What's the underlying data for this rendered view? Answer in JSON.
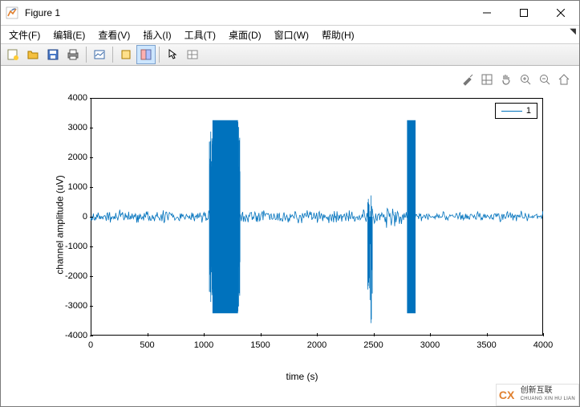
{
  "window": {
    "title": "Figure 1"
  },
  "menu": {
    "items": [
      "文件(F)",
      "编辑(E)",
      "查看(V)",
      "插入(I)",
      "工具(T)",
      "桌面(D)",
      "窗口(W)",
      "帮助(H)"
    ]
  },
  "toolbar": {
    "icons": [
      "new",
      "open",
      "save",
      "print",
      "|",
      "link",
      "|",
      "rotate",
      "datatip",
      "|",
      "arrow",
      "insert"
    ]
  },
  "chart": {
    "type": "line",
    "series_color": "#0072bd",
    "background_color": "#ffffff",
    "axis_color": "#000000",
    "xlabel": "time (s)",
    "ylabel": "channel amplitude (uV)",
    "xlim": [
      0,
      4000
    ],
    "ylim": [
      -4000,
      4000
    ],
    "xtick_step": 500,
    "ytick_step": 1000,
    "yticks": [
      "4000",
      "3000",
      "2000",
      "1000",
      "0",
      "-1000",
      "-2000",
      "-3000",
      "-4000"
    ],
    "xticks": [
      "0",
      "500",
      "1000",
      "1500",
      "2000",
      "2500",
      "3000",
      "3500",
      "4000"
    ],
    "legend_label": "1",
    "segments": [
      {
        "xstart": 0,
        "xend": 1050,
        "mode": "noise",
        "amp": 200
      },
      {
        "xstart": 1050,
        "xend": 1080,
        "mode": "burst",
        "amp": 3250
      },
      {
        "xstart": 1080,
        "xend": 1300,
        "mode": "solid",
        "amp": 3250
      },
      {
        "xstart": 1300,
        "xend": 1320,
        "mode": "burst",
        "amp": 3250
      },
      {
        "xstart": 1320,
        "xend": 2450,
        "mode": "noise",
        "amp": 220
      },
      {
        "xstart": 2450,
        "xend": 2490,
        "mode": "spike",
        "amp": -3250
      },
      {
        "xstart": 2490,
        "xend": 2800,
        "mode": "noise",
        "amp": 350
      },
      {
        "xstart": 2800,
        "xend": 2870,
        "mode": "block",
        "amp": 3250
      },
      {
        "xstart": 2870,
        "xend": 4050,
        "mode": "noise",
        "amp": 170
      }
    ]
  },
  "plottools": {
    "items": [
      "brush",
      "pan",
      "zoomin",
      "zoomout",
      "home"
    ]
  },
  "watermark": {
    "logo": "CX",
    "line1": "创新互联",
    "line2": "CHUANG XIN HU LIAN"
  }
}
